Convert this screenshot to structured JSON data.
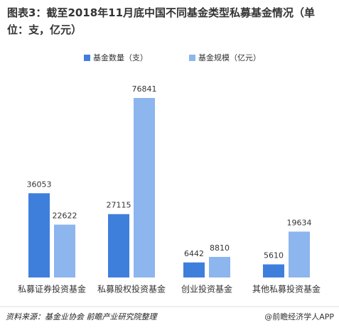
{
  "chart_data": {
    "type": "bar",
    "title": "图表3：截至2018年11月底中国不同基金类型私募基金情况（单位：支，亿元）",
    "categories": [
      "私募证券投资基金",
      "私募股权投资基金",
      "创业投资基金",
      "其他私募投资基金"
    ],
    "series": [
      {
        "name": "基金数量（支）",
        "color": "#3f7fdc",
        "values": [
          36053,
          27115,
          6442,
          5610
        ]
      },
      {
        "name": "基金规模（亿元）",
        "color": "#8db5ee",
        "values": [
          22622,
          76841,
          8810,
          19634
        ]
      }
    ],
    "source": "资料来源：基金业协会  前瞻产业研究院整理",
    "credit": "@前瞻经济学人APP"
  }
}
